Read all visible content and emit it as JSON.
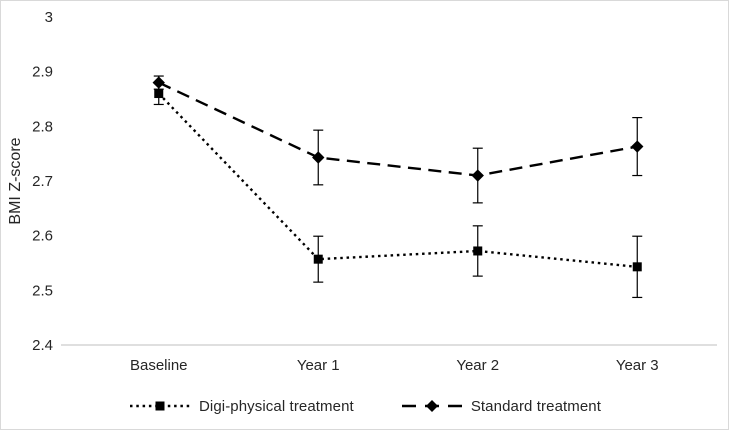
{
  "chart_data": {
    "type": "line",
    "title": "",
    "xlabel": "",
    "ylabel": "BMI Z-score",
    "categories": [
      "Baseline",
      "Year 1",
      "Year 2",
      "Year 3"
    ],
    "ylim": [
      2.4,
      3.0
    ],
    "yticks": [
      2.4,
      2.5,
      2.6,
      2.7,
      2.8,
      2.9,
      3
    ],
    "grid": false,
    "legend_position": "bottom",
    "axis_color": "#bfbfbf",
    "text_color": "#262626",
    "series": [
      {
        "name": "Digi-physical treatment",
        "marker": "square",
        "line_style": "dotted",
        "color": "#000000",
        "values": [
          2.86,
          2.557,
          2.572,
          2.543
        ],
        "errors": [
          0.02,
          0.042,
          0.046,
          0.056
        ]
      },
      {
        "name": "Standard treatment",
        "marker": "diamond",
        "line_style": "dashed",
        "color": "#000000",
        "values": [
          2.88,
          2.743,
          2.71,
          2.763
        ],
        "errors": [
          0.012,
          0.05,
          0.05,
          0.053
        ]
      }
    ]
  }
}
